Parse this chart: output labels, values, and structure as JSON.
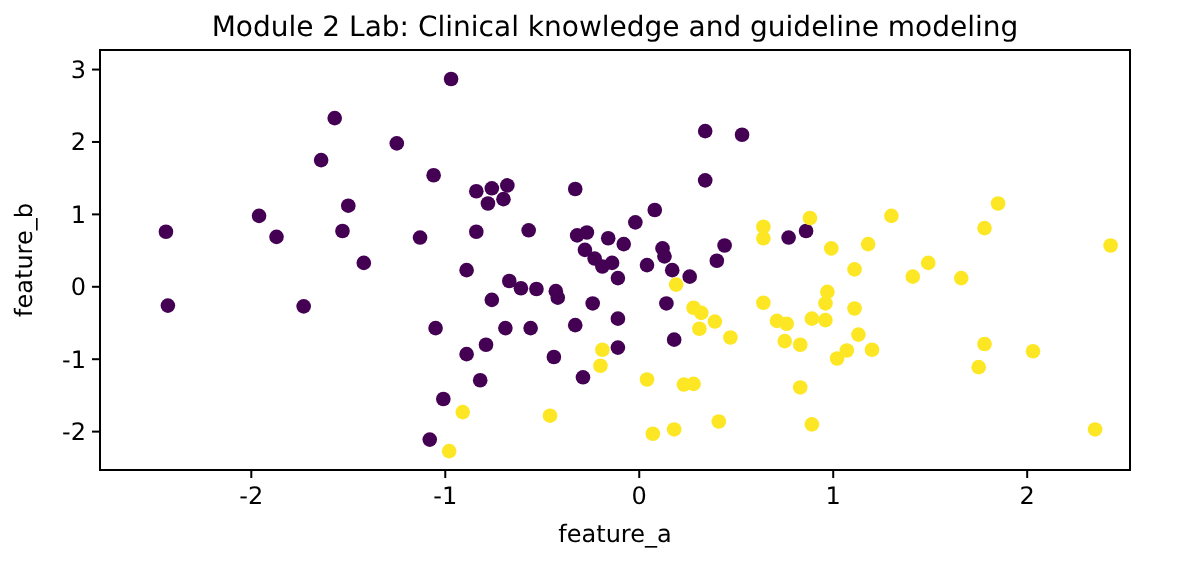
{
  "chart_data": {
    "type": "scatter",
    "title": "Module 2 Lab: Clinical knowledge and guideline modeling",
    "xlabel": "feature_a",
    "ylabel": "feature_b",
    "xlim": [
      -2.78,
      2.53
    ],
    "ylim": [
      -2.53,
      3.27
    ],
    "xticks": [
      -2,
      -1,
      0,
      1,
      2
    ],
    "yticks": [
      -2,
      -1,
      0,
      1,
      2,
      3
    ],
    "grid": false,
    "marker": "circle",
    "series": [
      {
        "color": "#440154",
        "x": [
          -2.44,
          -2.43,
          -1.96,
          -1.87,
          -1.73,
          -1.64,
          -1.57,
          -1.5,
          -1.53,
          -1.42,
          -1.25,
          -1.13,
          -1.06,
          -1.05,
          -1.01,
          -1.08,
          -0.97,
          -0.84,
          -0.76,
          -0.68,
          -0.78,
          -0.7,
          -0.33,
          0.08,
          -0.02,
          -0.84,
          -0.57,
          -0.32,
          -0.27,
          -0.28,
          -0.16,
          -0.08,
          -0.23,
          -0.19,
          -0.14,
          -0.11,
          0.12,
          0.13,
          0.04,
          0.17,
          -0.89,
          -0.67,
          -0.61,
          -0.53,
          -0.76,
          -0.43,
          -0.42,
          -0.24,
          0.14,
          -0.69,
          -0.56,
          -0.33,
          -0.11,
          0.18,
          -0.89,
          -0.79,
          -0.44,
          -0.11,
          -0.82,
          -0.29,
          0.34,
          0.53,
          0.34,
          0.26,
          0.4,
          0.44,
          0.77,
          0.86
        ],
        "values": [
          0.76,
          -0.26,
          0.98,
          0.69,
          -0.27,
          1.75,
          2.33,
          1.12,
          0.77,
          0.33,
          1.98,
          0.68,
          1.54,
          -0.57,
          -1.55,
          -2.11,
          2.87,
          1.32,
          1.36,
          1.4,
          1.15,
          1.21,
          1.35,
          1.06,
          0.89,
          0.76,
          0.78,
          0.71,
          0.75,
          0.51,
          0.67,
          0.59,
          0.39,
          0.28,
          0.33,
          0.12,
          0.53,
          0.42,
          0.3,
          0.23,
          0.23,
          0.08,
          -0.02,
          -0.03,
          -0.18,
          -0.06,
          -0.15,
          -0.23,
          -0.23,
          -0.57,
          -0.57,
          -0.53,
          -0.44,
          -0.73,
          -0.93,
          -0.8,
          -0.97,
          -0.84,
          -1.29,
          -1.25,
          2.15,
          2.1,
          1.47,
          0.14,
          0.36,
          0.57,
          0.68,
          0.77
        ]
      },
      {
        "color": "#fde725",
        "x": [
          -0.98,
          -0.19,
          -0.2,
          0.04,
          -0.91,
          -0.46,
          0.07,
          0.18,
          0.19,
          0.64,
          0.64,
          0.88,
          0.99,
          1.18,
          1.11,
          1.3,
          0.28,
          0.32,
          0.31,
          0.39,
          0.47,
          0.64,
          0.71,
          0.76,
          0.75,
          0.83,
          0.89,
          0.96,
          0.96,
          0.97,
          1.11,
          1.13,
          1.2,
          1.07,
          1.02,
          0.23,
          0.28,
          0.83,
          0.41,
          0.89,
          1.85,
          1.78,
          1.49,
          1.41,
          1.66,
          2.43,
          1.78,
          1.75,
          2.03,
          2.35
        ],
        "values": [
          -2.27,
          -0.87,
          -1.09,
          -1.28,
          -1.73,
          -1.78,
          -2.03,
          -1.97,
          0.03,
          0.83,
          0.67,
          0.95,
          0.53,
          0.59,
          0.24,
          0.98,
          -0.29,
          -0.36,
          -0.58,
          -0.48,
          -0.7,
          -0.22,
          -0.47,
          -0.51,
          -0.75,
          -0.8,
          -0.44,
          -0.46,
          -0.23,
          -0.07,
          -0.3,
          -0.66,
          -0.87,
          -0.88,
          -0.99,
          -1.35,
          -1.34,
          -1.39,
          -1.86,
          -1.9,
          1.15,
          0.81,
          0.33,
          0.14,
          0.12,
          0.57,
          -0.79,
          -1.11,
          -0.89,
          -1.97
        ]
      }
    ]
  }
}
